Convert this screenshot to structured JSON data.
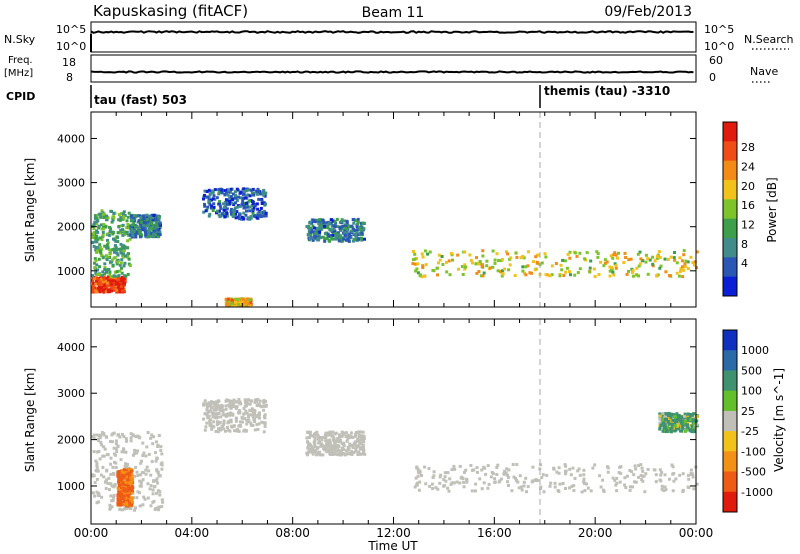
{
  "header": {
    "radar": "Kapuskasing (fitACF)",
    "beam": "Beam 11",
    "date": "09/Feb/2013"
  },
  "panels": {
    "nsky": {
      "label": "N.Sky",
      "right_label": "N.Search",
      "ticks_left": [
        "10^5",
        "10^0"
      ],
      "ticks_right": [
        "10^5",
        "10^0"
      ]
    },
    "freq": {
      "label_top": "Freq.",
      "label_unit": "[MHz]",
      "right_label": "Nave",
      "ticks_left": [
        "18",
        "8"
      ],
      "ticks_right": [
        "60",
        "0"
      ]
    },
    "cpid": {
      "label": "CPID",
      "modes": [
        {
          "name": "tau (fast) 503"
        },
        {
          "name": "themis (tau) -3310"
        }
      ]
    }
  },
  "time_axis": {
    "label": "Time UT",
    "ticks": [
      "00:00",
      "04:00",
      "08:00",
      "12:00",
      "16:00",
      "20:00",
      "00:00"
    ]
  },
  "chart_data": [
    {
      "type": "heatmap",
      "title": "",
      "ylabel": "Slant Range [km]",
      "xlabel": "",
      "ylim": [
        180,
        4600
      ],
      "xlim": [
        0,
        24
      ],
      "yticks": [
        "1000",
        "2000",
        "3000",
        "4000"
      ],
      "colorbar": {
        "label": "Power [dB]",
        "ticks": [
          "28",
          "24",
          "20",
          "16",
          "12",
          "8",
          "4"
        ]
      },
      "mode_change_hour": 18,
      "echo_regions_hours_km": [
        {
          "hours": [
            0.0,
            1.3
          ],
          "range_km": [
            550,
            900
          ],
          "power_db": 28
        },
        {
          "hours": [
            0.0,
            1.5
          ],
          "range_km": [
            900,
            2400
          ],
          "power_db": 12
        },
        {
          "hours": [
            1.5,
            2.7
          ],
          "range_km": [
            1800,
            2300
          ],
          "power_db": 8
        },
        {
          "hours": [
            4.4,
            6.9
          ],
          "range_km": [
            2200,
            2900
          ],
          "power_db": 6
        },
        {
          "hours": [
            8.5,
            10.8
          ],
          "range_km": [
            1700,
            2200
          ],
          "power_db": 8
        },
        {
          "hours": [
            12.7,
            24.0
          ],
          "range_km": [
            900,
            1500
          ],
          "power_db": 18
        },
        {
          "hours": [
            5.3,
            6.3
          ],
          "range_km": [
            250,
            400
          ],
          "power_db": 20
        }
      ]
    },
    {
      "type": "heatmap",
      "title": "",
      "ylabel": "Slant Range [km]",
      "xlabel": "Time UT",
      "ylim": [
        180,
        4600
      ],
      "xlim": [
        0,
        24
      ],
      "yticks": [
        "1000",
        "2000",
        "3000",
        "4000"
      ],
      "colorbar": {
        "label": "Velocity [m s^-1]",
        "ticks": [
          "1000",
          "500",
          "100",
          "25",
          "-25",
          "-100",
          "-500",
          "-1000"
        ]
      },
      "mode_change_hour": 18,
      "echo_regions_hours_km": [
        {
          "hours": [
            0.0,
            2.8
          ],
          "range_km": [
            500,
            2200
          ],
          "velocity": 0
        },
        {
          "hours": [
            1.0,
            1.6
          ],
          "range_km": [
            600,
            1400
          ],
          "velocity": -600
        },
        {
          "hours": [
            4.4,
            6.9
          ],
          "range_km": [
            2200,
            2900
          ],
          "velocity": 0
        },
        {
          "hours": [
            8.5,
            10.8
          ],
          "range_km": [
            1700,
            2200
          ],
          "velocity": 0
        },
        {
          "hours": [
            12.7,
            24.0
          ],
          "range_km": [
            900,
            1500
          ],
          "velocity": 0
        },
        {
          "hours": [
            22.5,
            24.0
          ],
          "range_km": [
            2200,
            2600
          ],
          "velocity": 200
        }
      ]
    }
  ],
  "colors": {
    "power_scale": [
      "#0a1fd6",
      "#2a57b6",
      "#3f8c8a",
      "#3d9f49",
      "#7cc42a",
      "#f3c21a",
      "#f38b16",
      "#ef4d15",
      "#e01a0d"
    ],
    "velocity_scale": [
      "#1030c0",
      "#2a6aa8",
      "#3f9270",
      "#63c02a",
      "#c0c0b8",
      "#f3c21a",
      "#f39016",
      "#ef5a15",
      "#e01a0d"
    ],
    "ground_scatter": "#c0c0b8"
  }
}
